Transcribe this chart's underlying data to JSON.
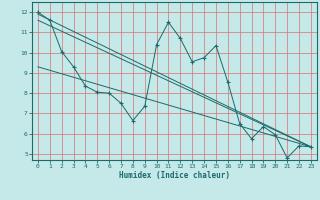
{
  "xlabel": "Humidex (Indice chaleur)",
  "bg_color": "#c5e8e8",
  "grid_color": "#d87070",
  "line_color": "#1a6b6b",
  "xlim": [
    -0.5,
    23.5
  ],
  "ylim": [
    4.7,
    12.5
  ],
  "xticks": [
    0,
    1,
    2,
    3,
    4,
    5,
    6,
    7,
    8,
    9,
    10,
    11,
    12,
    13,
    14,
    15,
    16,
    17,
    18,
    19,
    20,
    21,
    22,
    23
  ],
  "yticks": [
    5,
    6,
    7,
    8,
    9,
    10,
    11,
    12
  ],
  "jagged": {
    "x": [
      0,
      1,
      2,
      3,
      4,
      5,
      6,
      7,
      8,
      9,
      10,
      11,
      12,
      13,
      14,
      15,
      16,
      17,
      18,
      19,
      20,
      21,
      22,
      23
    ],
    "y": [
      12.0,
      11.6,
      10.05,
      9.3,
      8.35,
      8.05,
      8.0,
      7.5,
      6.65,
      7.35,
      10.4,
      11.5,
      10.7,
      9.55,
      9.75,
      10.35,
      8.55,
      6.5,
      5.75,
      6.35,
      5.95,
      4.8,
      5.4,
      5.35
    ]
  },
  "line1": {
    "x": [
      0,
      1,
      2,
      3,
      4,
      5,
      6,
      7,
      8,
      9,
      10,
      11,
      12,
      13,
      14,
      15,
      16,
      17,
      18,
      19,
      20,
      21,
      22,
      23
    ],
    "y": [
      11.9,
      11.58,
      11.26,
      10.94,
      10.62,
      10.3,
      9.98,
      9.66,
      9.34,
      9.02,
      8.7,
      8.38,
      8.06,
      7.74,
      7.42,
      7.1,
      6.78,
      6.46,
      6.14,
      5.82,
      5.6,
      5.38,
      5.35,
      5.35
    ]
  },
  "line2": {
    "x": [
      0,
      23
    ],
    "y": [
      11.9,
      5.35
    ]
  },
  "line3": {
    "x": [
      0,
      23
    ],
    "y": [
      9.3,
      5.35
    ]
  }
}
